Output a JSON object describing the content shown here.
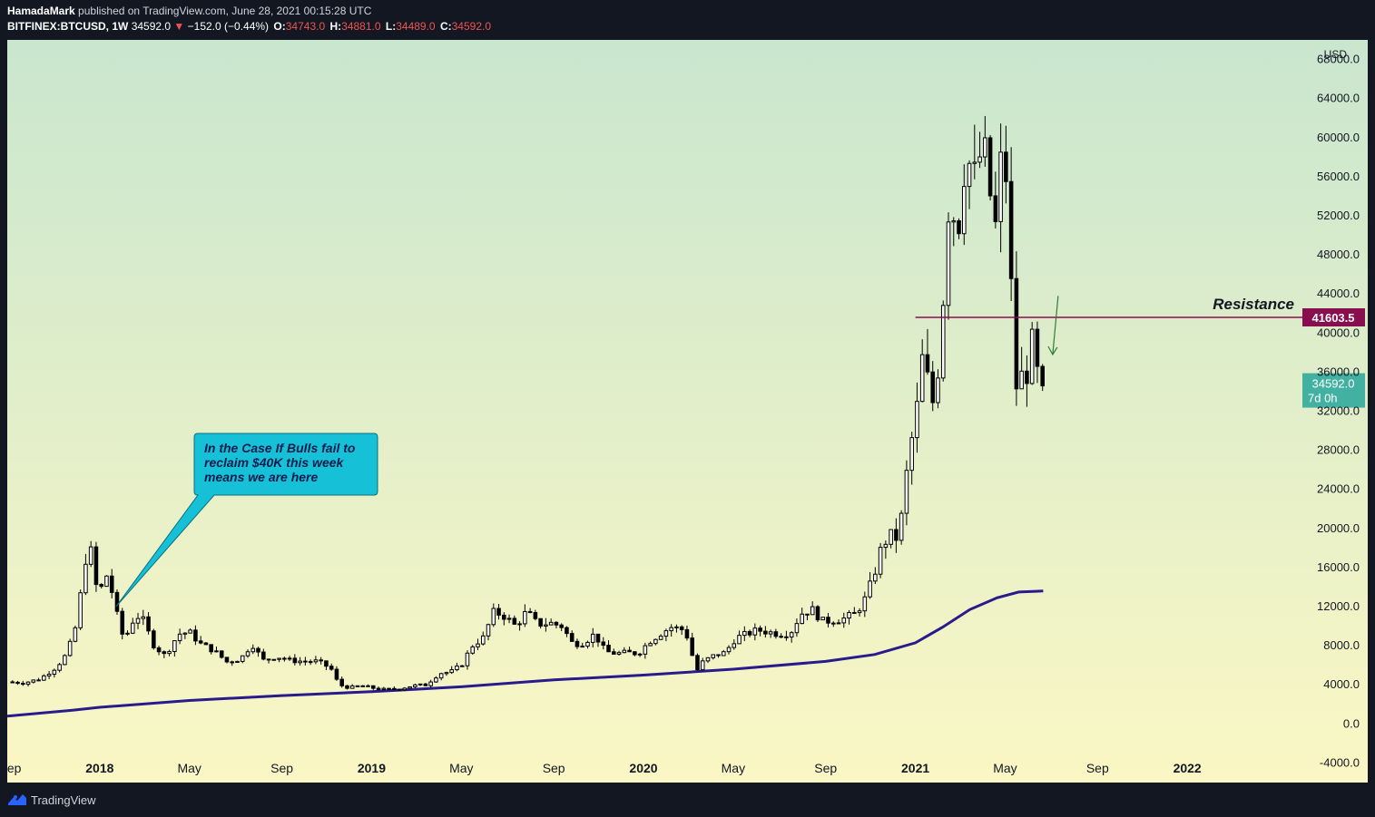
{
  "header": {
    "author": "HamadaMark",
    "published_text": "published on TradingView.com, June 28, 2021 00:15:28 UTC",
    "symbol": "BITFINEX:BTCUSD, 1W",
    "last": "34592.0",
    "arrow": "▼",
    "change": "−152.0 (−0.44%)",
    "o_label": "O:",
    "o_value": "34743.0",
    "h_label": "H:",
    "h_value": "34881.0",
    "l_label": "L:",
    "l_value": "34489.0",
    "c_label": "C:",
    "c_value": "34592.0"
  },
  "footer": {
    "brand": "TradingView"
  },
  "colors": {
    "bg_top": "#c9e6cf",
    "bg_bottom": "#fbf7c4",
    "candle_up": "#ffffff",
    "candle_down": "#000000",
    "ma_line": "#2a1b8c",
    "resistance": "#880e4f",
    "callout_fill": "#16c1d8",
    "last_price_bg": "#26a69a"
  },
  "chart_data": {
    "type": "candlestick",
    "title": "BITFINEX:BTCUSD, 1W",
    "currency": "USD",
    "ylim": [
      -6000,
      70000
    ],
    "y_ticks": [
      -4000,
      0,
      4000,
      8000,
      12000,
      16000,
      20000,
      24000,
      28000,
      32000,
      36000,
      40000,
      44000,
      48000,
      52000,
      56000,
      60000,
      64000,
      68000
    ],
    "y_tick_labels": [
      "-4000.0",
      "0.0",
      "4000.0",
      "8000.0",
      "12000.0",
      "16000.0",
      "20000.0",
      "24000.0",
      "28000.0",
      "32000.0",
      "36000.0",
      "40000.0",
      "44000.0",
      "48000.0",
      "52000.0",
      "56000.0",
      "60000.0",
      "64000.0",
      "68000.0"
    ],
    "x_labels": [
      {
        "label": "Sep",
        "t": 2017.67,
        "bold": false
      },
      {
        "label": "2018",
        "t": 2018.0,
        "bold": true
      },
      {
        "label": "May",
        "t": 2018.33,
        "bold": false
      },
      {
        "label": "Sep",
        "t": 2018.67,
        "bold": false
      },
      {
        "label": "2019",
        "t": 2019.0,
        "bold": true
      },
      {
        "label": "May",
        "t": 2019.33,
        "bold": false
      },
      {
        "label": "Sep",
        "t": 2019.67,
        "bold": false
      },
      {
        "label": "2020",
        "t": 2020.0,
        "bold": true
      },
      {
        "label": "May",
        "t": 2020.33,
        "bold": false
      },
      {
        "label": "Sep",
        "t": 2020.67,
        "bold": false
      },
      {
        "label": "2021",
        "t": 2021.0,
        "bold": true
      },
      {
        "label": "May",
        "t": 2021.33,
        "bold": false
      },
      {
        "label": "Sep",
        "t": 2021.67,
        "bold": false
      },
      {
        "label": "2022",
        "t": 2022.0,
        "bold": true
      }
    ],
    "xlim": [
      2017.66,
      2022.4
    ],
    "price_path": [
      [
        2017.66,
        4300
      ],
      [
        2017.72,
        4200
      ],
      [
        2017.78,
        4600
      ],
      [
        2017.84,
        5800
      ],
      [
        2017.88,
        7200
      ],
      [
        2017.91,
        9800
      ],
      [
        2017.94,
        15000
      ],
      [
        2017.96,
        19500
      ],
      [
        2017.98,
        14500
      ],
      [
        2018.0,
        13500
      ],
      [
        2018.03,
        15500
      ],
      [
        2018.06,
        11500
      ],
      [
        2018.09,
        8500
      ],
      [
        2018.12,
        10500
      ],
      [
        2018.15,
        11200
      ],
      [
        2018.2,
        8000
      ],
      [
        2018.24,
        7000
      ],
      [
        2018.29,
        9200
      ],
      [
        2018.33,
        9400
      ],
      [
        2018.37,
        8200
      ],
      [
        2018.42,
        7500
      ],
      [
        2018.47,
        6300
      ],
      [
        2018.52,
        6700
      ],
      [
        2018.56,
        8200
      ],
      [
        2018.6,
        6500
      ],
      [
        2018.65,
        6900
      ],
      [
        2018.7,
        6500
      ],
      [
        2018.75,
        6400
      ],
      [
        2018.8,
        6400
      ],
      [
        2018.85,
        5700
      ],
      [
        2018.88,
        4000
      ],
      [
        2018.92,
        3700
      ],
      [
        2018.96,
        3900
      ],
      [
        2019.0,
        3700
      ],
      [
        2019.05,
        3500
      ],
      [
        2019.1,
        3600
      ],
      [
        2019.15,
        3900
      ],
      [
        2019.2,
        4000
      ],
      [
        2019.25,
        5200
      ],
      [
        2019.29,
        5300
      ],
      [
        2019.33,
        6000
      ],
      [
        2019.37,
        8000
      ],
      [
        2019.41,
        8800
      ],
      [
        2019.45,
        11500
      ],
      [
        2019.49,
        11000
      ],
      [
        2019.53,
        10000
      ],
      [
        2019.57,
        11500
      ],
      [
        2019.61,
        10200
      ],
      [
        2019.66,
        10300
      ],
      [
        2019.7,
        10000
      ],
      [
        2019.74,
        8200
      ],
      [
        2019.78,
        8300
      ],
      [
        2019.82,
        9200
      ],
      [
        2019.86,
        7400
      ],
      [
        2019.9,
        7200
      ],
      [
        2019.94,
        7300
      ],
      [
        2019.98,
        7200
      ],
      [
        2020.02,
        8400
      ],
      [
        2020.06,
        9200
      ],
      [
        2020.1,
        9900
      ],
      [
        2020.14,
        9700
      ],
      [
        2020.17,
        8600
      ],
      [
        2020.19,
        5200
      ],
      [
        2020.22,
        6400
      ],
      [
        2020.26,
        7000
      ],
      [
        2020.3,
        7300
      ],
      [
        2020.34,
        8800
      ],
      [
        2020.38,
        9200
      ],
      [
        2020.42,
        9600
      ],
      [
        2020.46,
        9400
      ],
      [
        2020.5,
        9200
      ],
      [
        2020.54,
        9300
      ],
      [
        2020.58,
        11300
      ],
      [
        2020.62,
        11700
      ],
      [
        2020.66,
        10500
      ],
      [
        2020.7,
        10600
      ],
      [
        2020.74,
        10800
      ],
      [
        2020.78,
        11300
      ],
      [
        2020.82,
        13000
      ],
      [
        2020.85,
        15500
      ],
      [
        2020.88,
        18500
      ],
      [
        2020.91,
        19200
      ],
      [
        2020.94,
        19000
      ],
      [
        2020.96,
        24000
      ],
      [
        2020.98,
        28000
      ],
      [
        2021.01,
        33000
      ],
      [
        2021.03,
        38500
      ],
      [
        2021.05,
        34000
      ],
      [
        2021.07,
        32500
      ],
      [
        2021.09,
        38500
      ],
      [
        2021.11,
        47000
      ],
      [
        2021.13,
        57000
      ],
      [
        2021.15,
        48000
      ],
      [
        2021.17,
        55000
      ],
      [
        2021.19,
        59000
      ],
      [
        2021.21,
        55000
      ],
      [
        2021.23,
        57500
      ],
      [
        2021.25,
        59000
      ],
      [
        2021.27,
        56000
      ],
      [
        2021.29,
        49000
      ],
      [
        2021.31,
        57000
      ],
      [
        2021.33,
        58000
      ],
      [
        2021.35,
        46000
      ],
      [
        2021.37,
        34500
      ],
      [
        2021.39,
        35500
      ],
      [
        2021.41,
        36000
      ],
      [
        2021.43,
        39000
      ],
      [
        2021.45,
        35500
      ],
      [
        2021.47,
        34592
      ]
    ],
    "moving_average": {
      "color": "#2a1b8c",
      "points": [
        [
          2017.66,
          800
        ],
        [
          2017.9,
          1400
        ],
        [
          2018.0,
          1700
        ],
        [
          2018.33,
          2400
        ],
        [
          2018.67,
          2900
        ],
        [
          2019.0,
          3300
        ],
        [
          2019.33,
          3800
        ],
        [
          2019.67,
          4500
        ],
        [
          2020.0,
          5000
        ],
        [
          2020.33,
          5600
        ],
        [
          2020.67,
          6400
        ],
        [
          2020.85,
          7100
        ],
        [
          2021.0,
          8300
        ],
        [
          2021.1,
          9900
        ],
        [
          2021.2,
          11700
        ],
        [
          2021.3,
          12900
        ],
        [
          2021.38,
          13500
        ],
        [
          2021.47,
          13600
        ]
      ]
    },
    "resistance": {
      "value": 41603.5,
      "label": "Resistance",
      "tag": "41603.5",
      "start_t": 2021.0
    },
    "last_price": {
      "value": 34592.0,
      "tag": "34592.0",
      "countdown": "7d 0h"
    },
    "annotations": [
      {
        "text_lines": [
          "In the Case If Bulls fail to",
          "reclaim $40K this week",
          "means we are here"
        ],
        "target_t": 2018.06,
        "target_y": 12000
      }
    ]
  }
}
